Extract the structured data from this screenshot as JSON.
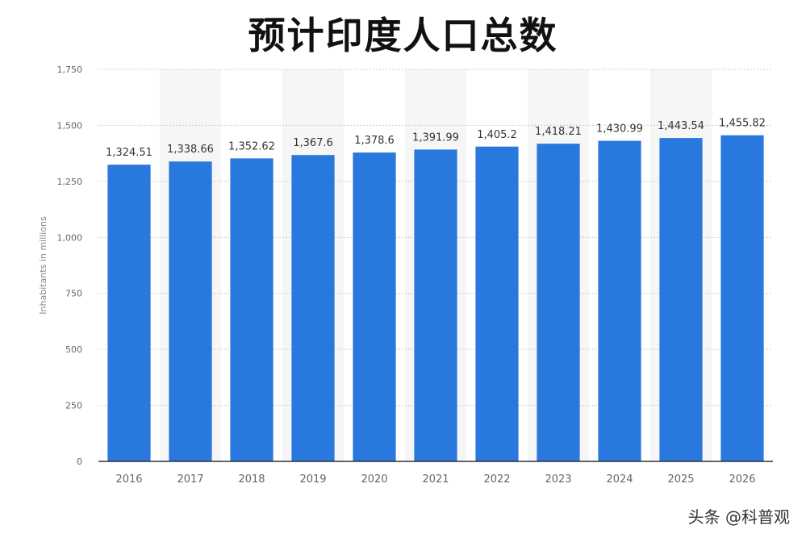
{
  "chart_data": {
    "type": "bar",
    "title": "预计印度人口总数",
    "xlabel": "",
    "ylabel": "Inhabitants in millions",
    "categories": [
      "2016",
      "2017",
      "2018",
      "2019",
      "2020",
      "2021",
      "2022",
      "2023",
      "2024",
      "2025",
      "2026"
    ],
    "values": [
      1324.51,
      1338.66,
      1352.62,
      1367.6,
      1378.6,
      1391.99,
      1405.2,
      1418.21,
      1430.99,
      1443.54,
      1455.82
    ],
    "value_labels": [
      "1,324.51",
      "1,338.66",
      "1,352.62",
      "1,367.6",
      "1,378.6",
      "1,391.99",
      "1,405.2",
      "1,418.21",
      "1,430.99",
      "1,443.54",
      "1,455.82"
    ],
    "ylim": [
      0,
      1750
    ],
    "yticks": [
      0,
      250,
      500,
      750,
      1000,
      1250,
      1500,
      1750
    ],
    "ytick_labels": [
      "0",
      "250",
      "500",
      "750",
      "1,000",
      "1,250",
      "1,500",
      "1,750"
    ],
    "grid": true,
    "legend": "none",
    "colors": {
      "bar": "#2878DE",
      "alt_band": "#F6F6F6",
      "grid": "#CCCCCC",
      "axis": "#333333",
      "tick_text": "#666666",
      "value_text": "#333333"
    }
  },
  "watermark": {
    "text": "头条 @科普观"
  }
}
